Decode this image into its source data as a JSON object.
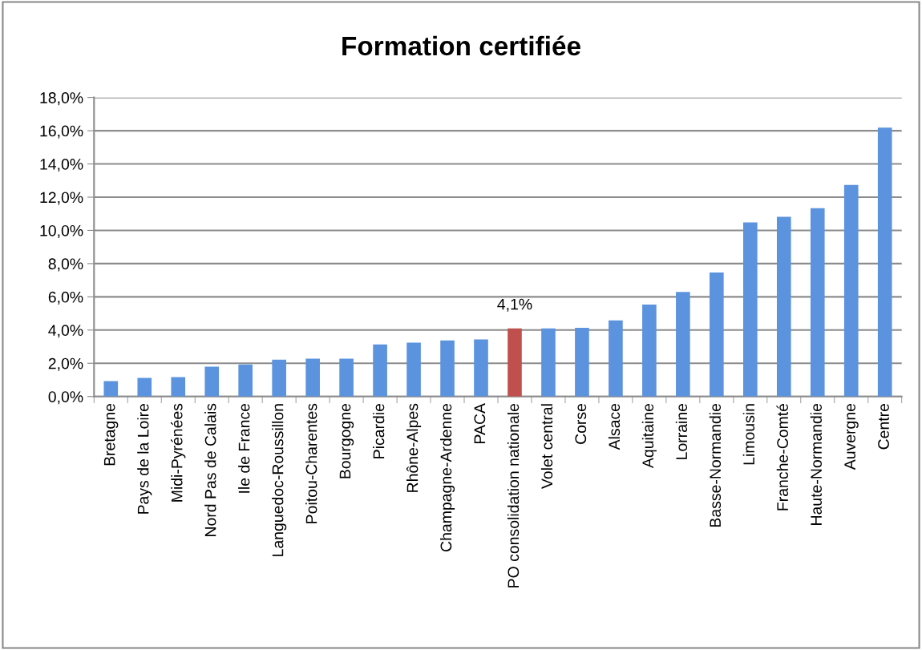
{
  "chart_data": {
    "type": "bar",
    "title": "Formation certifiée",
    "categories": [
      "Bretagne",
      "Pays de la Loire",
      "Midi-Pyrénées",
      "Nord Pas de Calais",
      "Ile de France",
      "Languedoc-Roussillon",
      "Poitou-Charentes",
      "Bourgogne",
      "Picardie",
      "Rhône-Alpes",
      "Champagne-Ardenne",
      "PACA",
      "PO consolidation nationale",
      "Volet central",
      "Corse",
      "Alsace",
      "Aquitaine",
      "Lorraine",
      "Basse-Normandie",
      "Limousin",
      "Franche-Comté",
      "Haute-Normandie",
      "Auvergne",
      "Centre"
    ],
    "values": [
      0.93,
      1.12,
      1.17,
      1.79,
      1.93,
      2.22,
      2.28,
      2.28,
      3.14,
      3.24,
      3.38,
      3.43,
      4.1,
      4.1,
      4.14,
      4.58,
      5.54,
      6.3,
      7.46,
      10.48,
      10.82,
      11.34,
      12.74,
      16.19
    ],
    "colors": [
      "#5b93de",
      "#5b93de",
      "#5b93de",
      "#5b93de",
      "#5b93de",
      "#5b93de",
      "#5b93de",
      "#5b93de",
      "#5b93de",
      "#5b93de",
      "#5b93de",
      "#5b93de",
      "#c0504d",
      "#5b93de",
      "#5b93de",
      "#5b93de",
      "#5b93de",
      "#5b93de",
      "#5b93de",
      "#5b93de",
      "#5b93de",
      "#5b93de",
      "#5b93de",
      "#5b93de"
    ],
    "value_labels": [
      null,
      null,
      null,
      null,
      null,
      null,
      null,
      null,
      null,
      null,
      null,
      null,
      "4,1%",
      null,
      null,
      null,
      null,
      null,
      null,
      null,
      null,
      null,
      null,
      null
    ],
    "ylim": [
      0,
      18
    ],
    "yticks": [
      {
        "value": 0,
        "label": "0,0%"
      },
      {
        "value": 2,
        "label": "2,0%"
      },
      {
        "value": 4,
        "label": "4,0%"
      },
      {
        "value": 6,
        "label": "6,0%"
      },
      {
        "value": 8,
        "label": "8,0%"
      },
      {
        "value": 10,
        "label": "10,0%"
      },
      {
        "value": 12,
        "label": "12,0%"
      },
      {
        "value": 14,
        "label": "14,0%"
      },
      {
        "value": 16,
        "label": "16,0%"
      },
      {
        "value": 18,
        "label": "18,0%"
      }
    ],
    "grid": "y",
    "legend": false
  }
}
